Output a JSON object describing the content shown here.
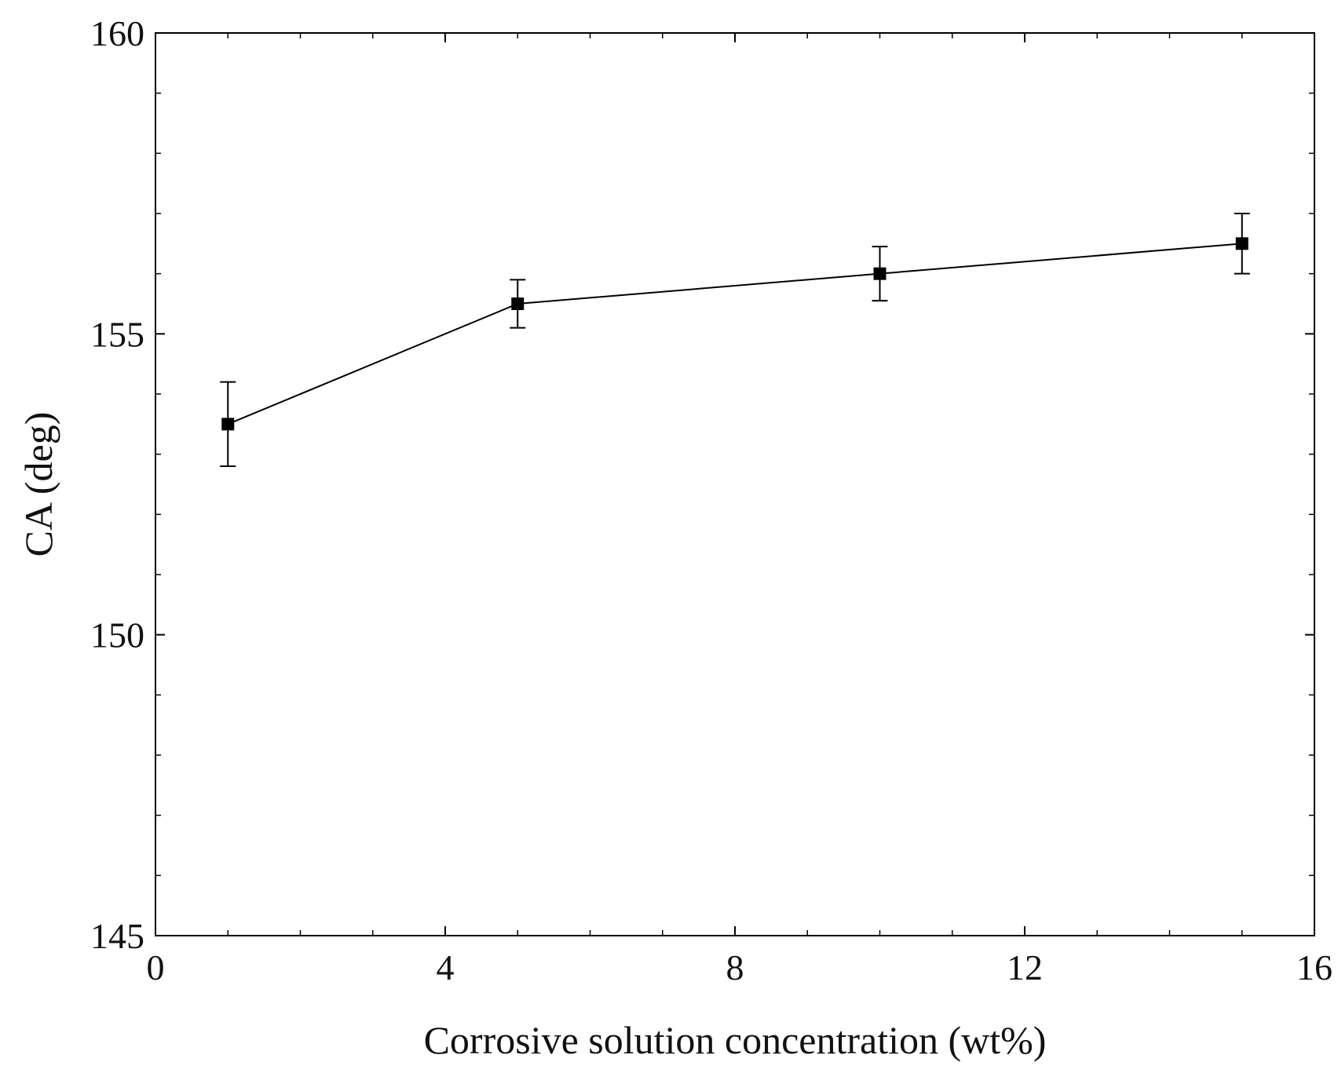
{
  "chart_data": {
    "type": "line",
    "title": "",
    "xlabel": "Corrosive solution concentration (wt%)",
    "ylabel": "CA (deg)",
    "xlim": [
      0,
      16
    ],
    "ylim": [
      145,
      160
    ],
    "xticks": [
      0,
      4,
      8,
      12,
      16
    ],
    "yticks": [
      145,
      150,
      155,
      160
    ],
    "x_minor_step": 1,
    "y_minor_step": 1,
    "grid": false,
    "colors": {
      "line": "#000000",
      "axis": "#000000",
      "background": "#ffffff"
    },
    "series": [
      {
        "name": "CA",
        "x": [
          1,
          5,
          10,
          15
        ],
        "y": [
          153.5,
          155.5,
          156.0,
          156.5
        ],
        "error": [
          0.7,
          0.4,
          0.45,
          0.5
        ]
      }
    ]
  }
}
